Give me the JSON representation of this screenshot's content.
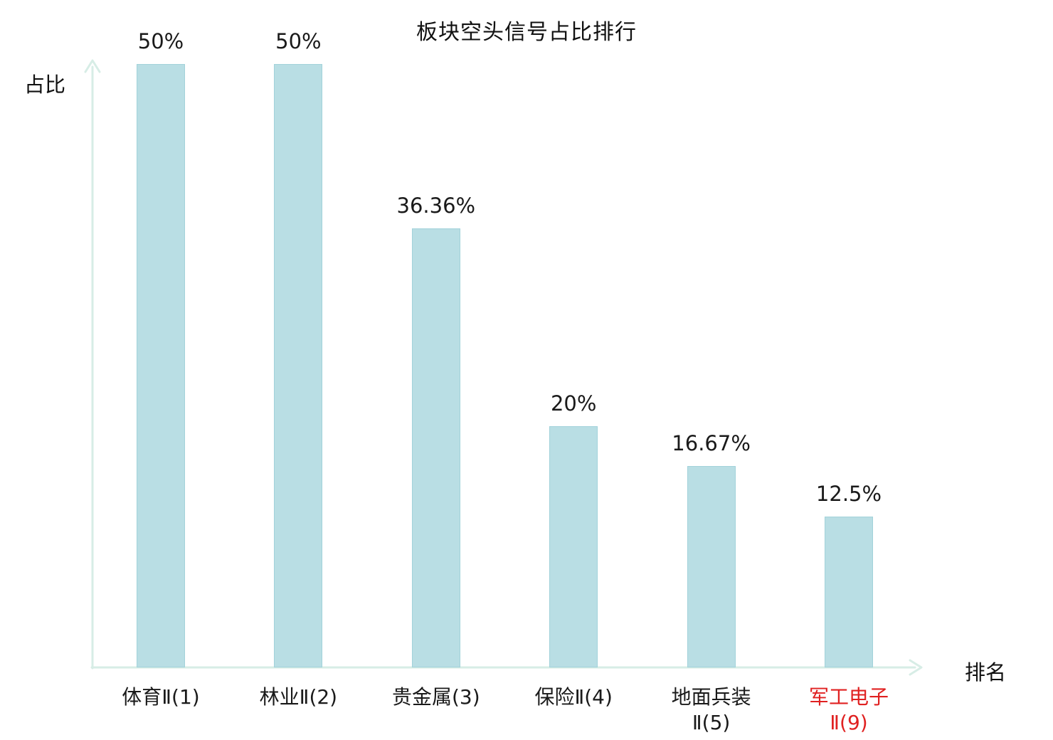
{
  "chart_data": {
    "type": "bar",
    "title": "板块空头信号占比排行",
    "xlabel": "排名",
    "ylabel": "占比",
    "categories": [
      "体育Ⅱ(1)",
      "林业Ⅱ(2)",
      "贵金属(3)",
      "保险Ⅱ(4)",
      "地面兵装Ⅱ(5)",
      "军工电子Ⅱ(9)"
    ],
    "category_lines": [
      [
        "体育Ⅱ(1)"
      ],
      [
        "林业Ⅱ(2)"
      ],
      [
        "贵金属(3)"
      ],
      [
        "保险Ⅱ(4)"
      ],
      [
        "地面兵装",
        "Ⅱ(5)"
      ],
      [
        "军工电子",
        "Ⅱ(9)"
      ]
    ],
    "values": [
      50,
      50,
      36.36,
      20,
      16.67,
      12.5
    ],
    "value_labels": [
      "50%",
      "50%",
      "36.36%",
      "20%",
      "16.67%",
      "12.5%"
    ],
    "highlight_index": 5,
    "ylim": [
      0,
      50
    ],
    "grid": false,
    "legend": "none",
    "colors": {
      "bar_fill": "#b9dee4",
      "bar_border": "#a2d2da",
      "axis": "#d7ede6",
      "label": "#1a1a1a",
      "highlight": "#e02121"
    }
  }
}
